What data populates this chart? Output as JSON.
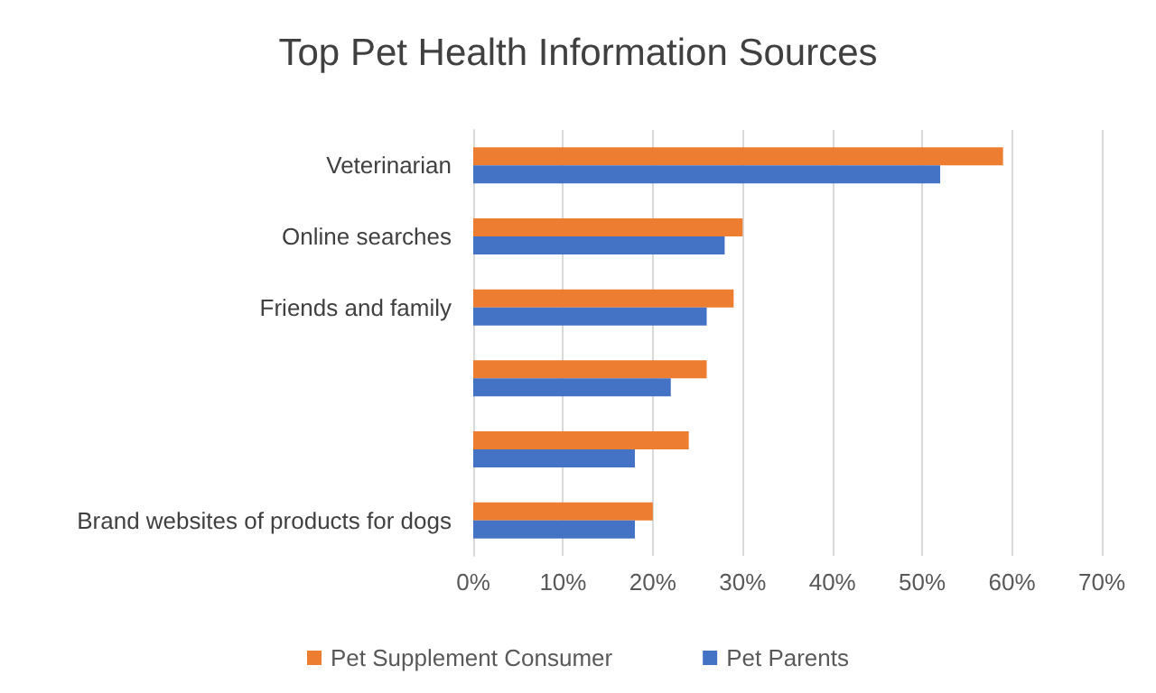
{
  "chart_data": {
    "type": "bar",
    "orientation": "horizontal",
    "title": "Top Pet Health Information Sources",
    "categories": [
      "Veterinarian",
      "Online searches",
      "Friends and family",
      null,
      null,
      "Brand websites of products for dogs"
    ],
    "series": [
      {
        "name": "Pet Supplement Consumer",
        "color": "#ed7d31",
        "values": [
          59,
          30,
          29,
          26,
          24,
          20
        ]
      },
      {
        "name": "Pet Parents",
        "color": "#4472c4",
        "values": [
          52,
          28,
          26,
          22,
          18,
          18
        ]
      }
    ],
    "xlim": [
      0,
      70
    ],
    "xticks": [
      {
        "value": 0,
        "label": "0%"
      },
      {
        "value": 10,
        "label": "10%"
      },
      {
        "value": 20,
        "label": "20%"
      },
      {
        "value": 30,
        "label": "30%"
      },
      {
        "value": 40,
        "label": "40%"
      },
      {
        "value": 50,
        "label": "50%"
      },
      {
        "value": 60,
        "label": "60%"
      },
      {
        "value": 70,
        "label": "70%"
      }
    ],
    "grid": "x",
    "legend": "bottom"
  }
}
